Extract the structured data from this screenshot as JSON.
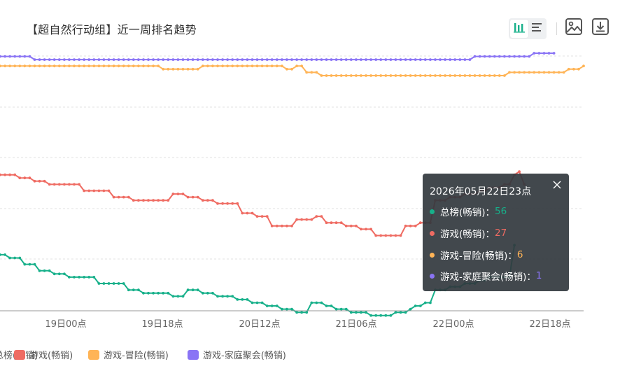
{
  "title": "【超自然行动组】近一周排名趋势",
  "toolbar": {
    "chart_view_icon": "bar-chart-icon",
    "list_view_icon": "list-icon",
    "save_image_icon": "image-icon",
    "download_icon": "download-icon"
  },
  "tooltip": {
    "title": "2026年05月22日23点",
    "rows": [
      {
        "name": "总榜(畅销)",
        "value": "56",
        "color": "#17b08a"
      },
      {
        "name": "游戏(畅销)",
        "value": "27",
        "color": "#ef6b62"
      },
      {
        "name": "游戏-冒险(畅销)",
        "value": "6",
        "color": "#ffb456"
      },
      {
        "name": "游戏-家庭聚会(畅销)",
        "value": "1",
        "color": "#8a74f5"
      }
    ]
  },
  "legend": [
    {
      "label": "总榜(畅销)",
      "color": "#17b08a"
    },
    {
      "label": "游戏(畅销)",
      "color": "#ef6b62"
    },
    {
      "label": "游戏-冒险(畅销)",
      "color": "#ffb456"
    },
    {
      "label": "游戏-家庭聚会(畅销)",
      "color": "#8a74f5"
    }
  ],
  "chart_data": {
    "type": "line",
    "title": "【超自然行动组】近一周排名趋势",
    "xlabel": "",
    "ylabel": "",
    "x_tick_labels": [
      "19日00点",
      "19日18点",
      "20日12点",
      "21日06点",
      "22日00点",
      "22日18点"
    ],
    "y_inverted": true,
    "grid": true,
    "legend_position": "bottom",
    "x_note": "hourly points, 1 unit = 1 hour from first visible point",
    "series": [
      {
        "name": "总榜(畅销)",
        "color": "#17b08a",
        "values": [
          64,
          64,
          65,
          65,
          65,
          67,
          67,
          67,
          69,
          69,
          69,
          70,
          70,
          70,
          71,
          71,
          71,
          71,
          71,
          71,
          73,
          73,
          73,
          73,
          73,
          73,
          75,
          75,
          75,
          76,
          76,
          76,
          76,
          76,
          76,
          77,
          77,
          77,
          75,
          75,
          75,
          76,
          76,
          76,
          77,
          77,
          77,
          77,
          78,
          78,
          78,
          79,
          79,
          79,
          80,
          80,
          80,
          81,
          81,
          81,
          82,
          82,
          82,
          79,
          79,
          79,
          80,
          80,
          81,
          81,
          81,
          82,
          82,
          82,
          82,
          83,
          83,
          83,
          83,
          83,
          82,
          82,
          82,
          81,
          80,
          80,
          79,
          79,
          75,
          75,
          75,
          74,
          74,
          74,
          73,
          73,
          73,
          72,
          72,
          71,
          71,
          71,
          71,
          71,
          61
        ]
      },
      {
        "name": "游戏(畅销)",
        "color": "#ef6b62",
        "values": [
          39,
          39,
          39,
          39,
          40,
          40,
          40,
          41,
          41,
          41,
          42,
          42,
          42,
          42,
          42,
          42,
          42,
          44,
          44,
          44,
          44,
          44,
          44,
          46,
          46,
          46,
          46,
          47,
          47,
          47,
          47,
          47,
          47,
          47,
          47,
          45,
          45,
          45,
          46,
          46,
          46,
          47,
          47,
          47,
          48,
          48,
          48,
          48,
          48,
          51,
          51,
          51,
          52,
          52,
          52,
          55,
          55,
          55,
          55,
          55,
          53,
          53,
          53,
          53,
          52,
          52,
          54,
          54,
          54,
          54,
          55,
          55,
          55,
          56,
          56,
          56,
          58,
          58,
          58,
          58,
          58,
          58,
          55,
          55,
          55,
          54,
          54,
          54,
          47,
          47,
          47,
          46,
          46,
          46,
          45,
          45,
          45,
          44,
          44,
          43,
          43,
          43,
          42,
          42,
          39,
          38,
          42
        ]
      },
      {
        "name": "游戏-冒险(畅销)",
        "color": "#ffb456",
        "values": [
          5,
          5,
          5,
          5,
          5,
          5,
          5,
          5,
          5,
          5,
          5,
          5,
          5,
          5,
          5,
          5,
          5,
          5,
          5,
          5,
          5,
          5,
          5,
          5,
          5,
          5,
          5,
          5,
          5,
          5,
          5,
          5,
          5,
          6,
          6,
          6,
          6,
          6,
          6,
          6,
          6,
          5,
          5,
          5,
          5,
          5,
          5,
          5,
          5,
          5,
          5,
          5,
          5,
          5,
          5,
          5,
          5,
          5,
          6,
          6,
          5,
          5,
          7,
          7,
          7,
          8,
          8,
          8,
          8,
          8,
          8,
          8,
          8,
          8,
          8,
          8,
          8,
          8,
          8,
          8,
          8,
          8,
          8,
          8,
          8,
          8,
          8,
          8,
          8,
          8,
          8,
          8,
          8,
          8,
          8,
          8,
          8,
          8,
          8,
          8,
          8,
          8,
          8,
          7,
          7,
          7,
          7,
          7,
          7,
          7,
          7,
          7,
          7,
          7,
          7,
          6,
          6,
          6,
          5
        ]
      },
      {
        "name": "游戏-家庭聚会(畅销)",
        "color": "#8a74f5",
        "values": [
          2,
          2,
          2,
          2,
          2,
          2,
          2,
          3,
          3,
          3,
          3,
          3,
          3,
          3,
          3,
          3,
          3,
          3,
          3,
          3,
          3,
          3,
          3,
          3,
          3,
          3,
          3,
          3,
          3,
          3,
          3,
          3,
          3,
          3,
          3,
          3,
          3,
          3,
          3,
          3,
          3,
          3,
          3,
          3,
          3,
          3,
          3,
          3,
          3,
          3,
          3,
          3,
          3,
          3,
          3,
          3,
          3,
          3,
          3,
          3,
          3,
          3,
          3,
          3,
          3,
          3,
          3,
          3,
          3,
          3,
          3,
          3,
          3,
          3,
          3,
          3,
          3,
          3,
          3,
          3,
          3,
          3,
          3,
          3,
          3,
          3,
          3,
          3,
          3,
          3,
          3,
          3,
          3,
          3,
          3,
          3,
          2,
          2,
          2,
          2,
          2,
          2,
          2,
          2,
          2,
          2,
          2,
          2,
          1,
          1,
          1,
          1,
          1
        ]
      }
    ]
  }
}
